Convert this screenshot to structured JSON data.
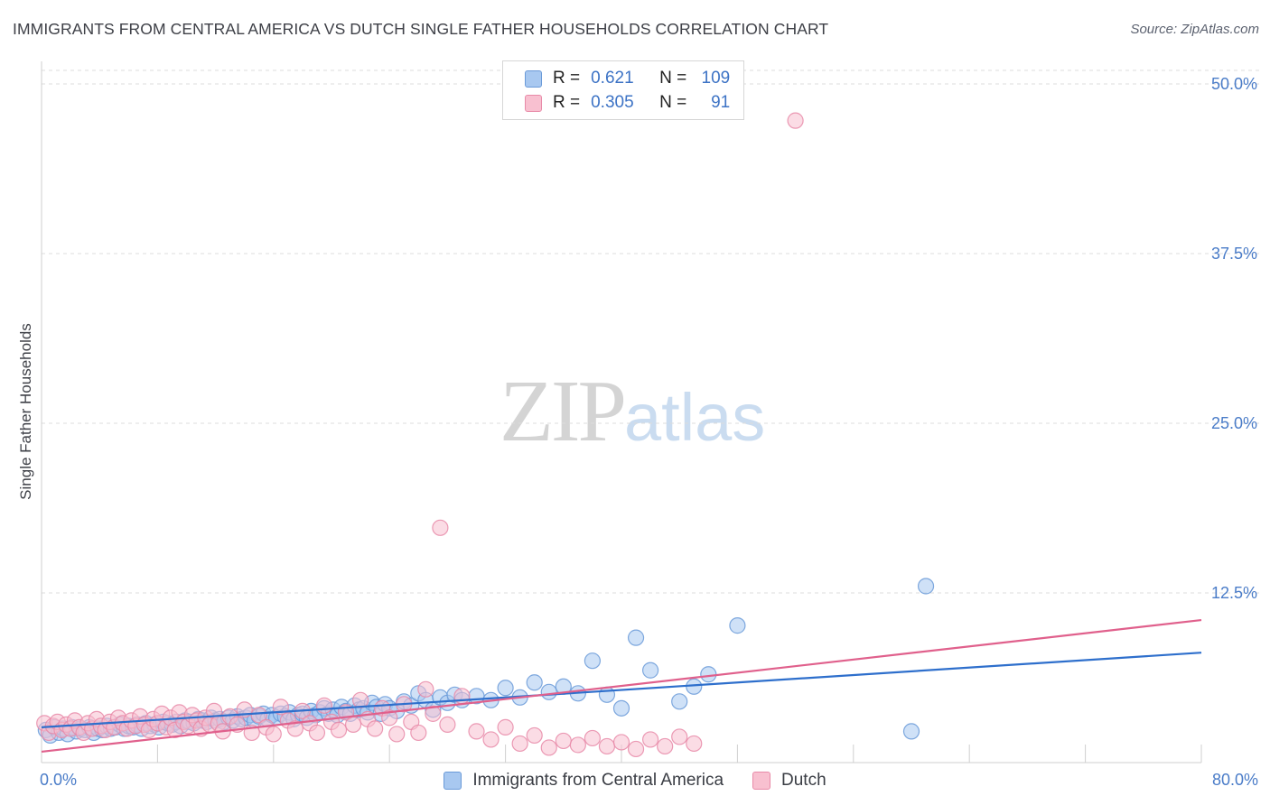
{
  "title": "IMMIGRANTS FROM CENTRAL AMERICA VS DUTCH SINGLE FATHER HOUSEHOLDS CORRELATION CHART",
  "source": "Source: ZipAtlas.com",
  "watermark": {
    "part1": "ZIP",
    "part2": "atlas"
  },
  "legend": {
    "rows": [
      {
        "r_label": "R =",
        "r_value": "0.621",
        "n_label": "N =",
        "n_value": "109",
        "color": "#a8c8f0",
        "border": "#6a9ad8"
      },
      {
        "r_label": "R =",
        "r_value": "0.305",
        "n_label": "N =",
        "n_value": "91",
        "color": "#f8c0d0",
        "border": "#e88aa8"
      }
    ]
  },
  "chart_data": {
    "type": "scatter",
    "title": "IMMIGRANTS FROM CENTRAL AMERICA VS DUTCH SINGLE FATHER HOUSEHOLDS CORRELATION CHART",
    "xlabel": "",
    "ylabel": "Single Father Households",
    "xlim": [
      0,
      80
    ],
    "ylim": [
      0,
      51
    ],
    "x_tick_labels": [
      "0.0%",
      "80.0%"
    ],
    "y_ticks": [
      12.5,
      25.0,
      37.5,
      50.0
    ],
    "y_tick_labels": [
      "12.5%",
      "25.0%",
      "37.5%",
      "50.0%"
    ],
    "grid": true,
    "legend_position": "bottom-center",
    "series": [
      {
        "name": "Immigrants from Central America",
        "color": "#6a9ad8",
        "fill": "#a8c8f0",
        "trend": {
          "x": [
            0,
            80
          ],
          "y": [
            2.6,
            8.1
          ]
        },
        "points": [
          [
            0.3,
            2.4
          ],
          [
            0.6,
            2.0
          ],
          [
            0.9,
            2.6
          ],
          [
            1.2,
            2.2
          ],
          [
            1.5,
            2.5
          ],
          [
            1.8,
            2.1
          ],
          [
            2.1,
            2.6
          ],
          [
            2.4,
            2.3
          ],
          [
            2.7,
            2.5
          ],
          [
            3.0,
            2.4
          ],
          [
            3.3,
            2.6
          ],
          [
            3.6,
            2.2
          ],
          [
            3.9,
            2.5
          ],
          [
            4.2,
            2.4
          ],
          [
            4.5,
            2.7
          ],
          [
            4.8,
            2.5
          ],
          [
            5.1,
            2.6
          ],
          [
            5.4,
            2.8
          ],
          [
            5.7,
            2.5
          ],
          [
            6.0,
            2.7
          ],
          [
            6.3,
            2.6
          ],
          [
            6.6,
            2.8
          ],
          [
            6.9,
            2.5
          ],
          [
            7.2,
            2.9
          ],
          [
            7.5,
            2.7
          ],
          [
            7.8,
            2.8
          ],
          [
            8.1,
            2.6
          ],
          [
            8.4,
            3.0
          ],
          [
            8.7,
            2.9
          ],
          [
            9.0,
            2.8
          ],
          [
            9.3,
            3.0
          ],
          [
            9.6,
            2.7
          ],
          [
            9.9,
            3.1
          ],
          [
            10.2,
            3.0
          ],
          [
            10.5,
            2.9
          ],
          [
            10.8,
            3.2
          ],
          [
            11.1,
            3.1
          ],
          [
            11.4,
            3.0
          ],
          [
            11.7,
            3.3
          ],
          [
            12.0,
            3.1
          ],
          [
            12.3,
            3.2
          ],
          [
            12.6,
            3.0
          ],
          [
            12.9,
            3.3
          ],
          [
            13.2,
            3.1
          ],
          [
            13.5,
            3.4
          ],
          [
            13.8,
            3.2
          ],
          [
            14.1,
            3.3
          ],
          [
            14.4,
            3.5
          ],
          [
            14.7,
            3.1
          ],
          [
            15.0,
            3.4
          ],
          [
            15.3,
            3.6
          ],
          [
            15.6,
            3.2
          ],
          [
            15.9,
            3.5
          ],
          [
            16.2,
            3.3
          ],
          [
            16.5,
            3.6
          ],
          [
            16.8,
            3.4
          ],
          [
            17.1,
            3.7
          ],
          [
            17.4,
            3.2
          ],
          [
            17.7,
            3.5
          ],
          [
            18.0,
            3.6
          ],
          [
            18.3,
            3.3
          ],
          [
            18.6,
            3.8
          ],
          [
            18.9,
            3.5
          ],
          [
            19.2,
            3.7
          ],
          [
            19.5,
            4.0
          ],
          [
            19.8,
            3.6
          ],
          [
            20.1,
            3.9
          ],
          [
            20.4,
            3.5
          ],
          [
            20.7,
            4.1
          ],
          [
            21.0,
            3.8
          ],
          [
            21.3,
            3.6
          ],
          [
            21.6,
            4.2
          ],
          [
            21.9,
            3.9
          ],
          [
            22.2,
            4.0
          ],
          [
            22.5,
            3.7
          ],
          [
            22.8,
            4.4
          ],
          [
            23.1,
            4.1
          ],
          [
            23.4,
            3.6
          ],
          [
            23.7,
            4.3
          ],
          [
            24.0,
            4.0
          ],
          [
            24.5,
            3.8
          ],
          [
            25.0,
            4.5
          ],
          [
            25.5,
            4.2
          ],
          [
            26.0,
            5.1
          ],
          [
            26.5,
            4.6
          ],
          [
            27.0,
            3.9
          ],
          [
            27.5,
            4.8
          ],
          [
            28.0,
            4.4
          ],
          [
            28.5,
            5.0
          ],
          [
            29.0,
            4.6
          ],
          [
            30.0,
            4.9
          ],
          [
            31.0,
            4.6
          ],
          [
            32.0,
            5.5
          ],
          [
            33.0,
            4.8
          ],
          [
            34.0,
            5.9
          ],
          [
            35.0,
            5.2
          ],
          [
            36.0,
            5.6
          ],
          [
            37.0,
            5.1
          ],
          [
            38.0,
            7.5
          ],
          [
            39.0,
            5.0
          ],
          [
            40.0,
            4.0
          ],
          [
            41.0,
            9.2
          ],
          [
            42.0,
            6.8
          ],
          [
            44.0,
            4.5
          ],
          [
            45.0,
            5.6
          ],
          [
            46.0,
            6.5
          ],
          [
            48.0,
            10.1
          ],
          [
            60.0,
            2.3
          ],
          [
            61.0,
            13.0
          ]
        ]
      },
      {
        "name": "Dutch",
        "color": "#e88aa8",
        "fill": "#f8c0d0",
        "trend": {
          "x": [
            0,
            80
          ],
          "y": [
            0.8,
            10.5
          ]
        },
        "points": [
          [
            0.2,
            2.9
          ],
          [
            0.5,
            2.2
          ],
          [
            0.8,
            2.7
          ],
          [
            1.1,
            3.0
          ],
          [
            1.4,
            2.4
          ],
          [
            1.7,
            2.8
          ],
          [
            2.0,
            2.5
          ],
          [
            2.3,
            3.1
          ],
          [
            2.6,
            2.6
          ],
          [
            2.9,
            2.2
          ],
          [
            3.2,
            2.9
          ],
          [
            3.5,
            2.5
          ],
          [
            3.8,
            3.2
          ],
          [
            4.1,
            2.7
          ],
          [
            4.4,
            2.4
          ],
          [
            4.7,
            3.0
          ],
          [
            5.0,
            2.6
          ],
          [
            5.3,
            3.3
          ],
          [
            5.6,
            2.9
          ],
          [
            5.9,
            2.5
          ],
          [
            6.2,
            3.1
          ],
          [
            6.5,
            2.7
          ],
          [
            6.8,
            3.4
          ],
          [
            7.1,
            2.8
          ],
          [
            7.4,
            2.4
          ],
          [
            7.7,
            3.2
          ],
          [
            8.0,
            2.9
          ],
          [
            8.3,
            3.6
          ],
          [
            8.6,
            2.6
          ],
          [
            8.9,
            3.3
          ],
          [
            9.2,
            2.4
          ],
          [
            9.5,
            3.7
          ],
          [
            9.8,
            3.0
          ],
          [
            10.1,
            2.7
          ],
          [
            10.4,
            3.5
          ],
          [
            10.7,
            3.1
          ],
          [
            11.0,
            2.5
          ],
          [
            11.3,
            3.3
          ],
          [
            11.6,
            2.8
          ],
          [
            11.9,
            3.8
          ],
          [
            12.2,
            2.9
          ],
          [
            12.5,
            2.3
          ],
          [
            13.0,
            3.4
          ],
          [
            13.5,
            2.8
          ],
          [
            14.0,
            3.9
          ],
          [
            14.5,
            2.2
          ],
          [
            15.0,
            3.5
          ],
          [
            15.5,
            2.6
          ],
          [
            16.0,
            2.1
          ],
          [
            16.5,
            4.1
          ],
          [
            17.0,
            3.1
          ],
          [
            17.5,
            2.5
          ],
          [
            18.0,
            3.8
          ],
          [
            18.5,
            2.9
          ],
          [
            19.0,
            2.2
          ],
          [
            19.5,
            4.2
          ],
          [
            20.0,
            3.0
          ],
          [
            20.5,
            2.4
          ],
          [
            21.0,
            3.7
          ],
          [
            21.5,
            2.8
          ],
          [
            22.0,
            4.6
          ],
          [
            22.5,
            3.2
          ],
          [
            23.0,
            2.5
          ],
          [
            23.5,
            4.0
          ],
          [
            24.0,
            3.3
          ],
          [
            24.5,
            2.1
          ],
          [
            25.0,
            4.3
          ],
          [
            25.5,
            3.0
          ],
          [
            26.0,
            2.2
          ],
          [
            26.5,
            5.4
          ],
          [
            27.0,
            3.6
          ],
          [
            28.0,
            2.8
          ],
          [
            29.0,
            4.9
          ],
          [
            30.0,
            2.3
          ],
          [
            31.0,
            1.7
          ],
          [
            32.0,
            2.6
          ],
          [
            33.0,
            1.4
          ],
          [
            34.0,
            2.0
          ],
          [
            35.0,
            1.1
          ],
          [
            36.0,
            1.6
          ],
          [
            37.0,
            1.3
          ],
          [
            38.0,
            1.8
          ],
          [
            39.0,
            1.2
          ],
          [
            40.0,
            1.5
          ],
          [
            41.0,
            1.0
          ],
          [
            42.0,
            1.7
          ],
          [
            43.0,
            1.2
          ],
          [
            44.0,
            1.9
          ],
          [
            45.0,
            1.4
          ],
          [
            27.5,
            17.3
          ],
          [
            52.0,
            47.3
          ]
        ]
      }
    ]
  }
}
